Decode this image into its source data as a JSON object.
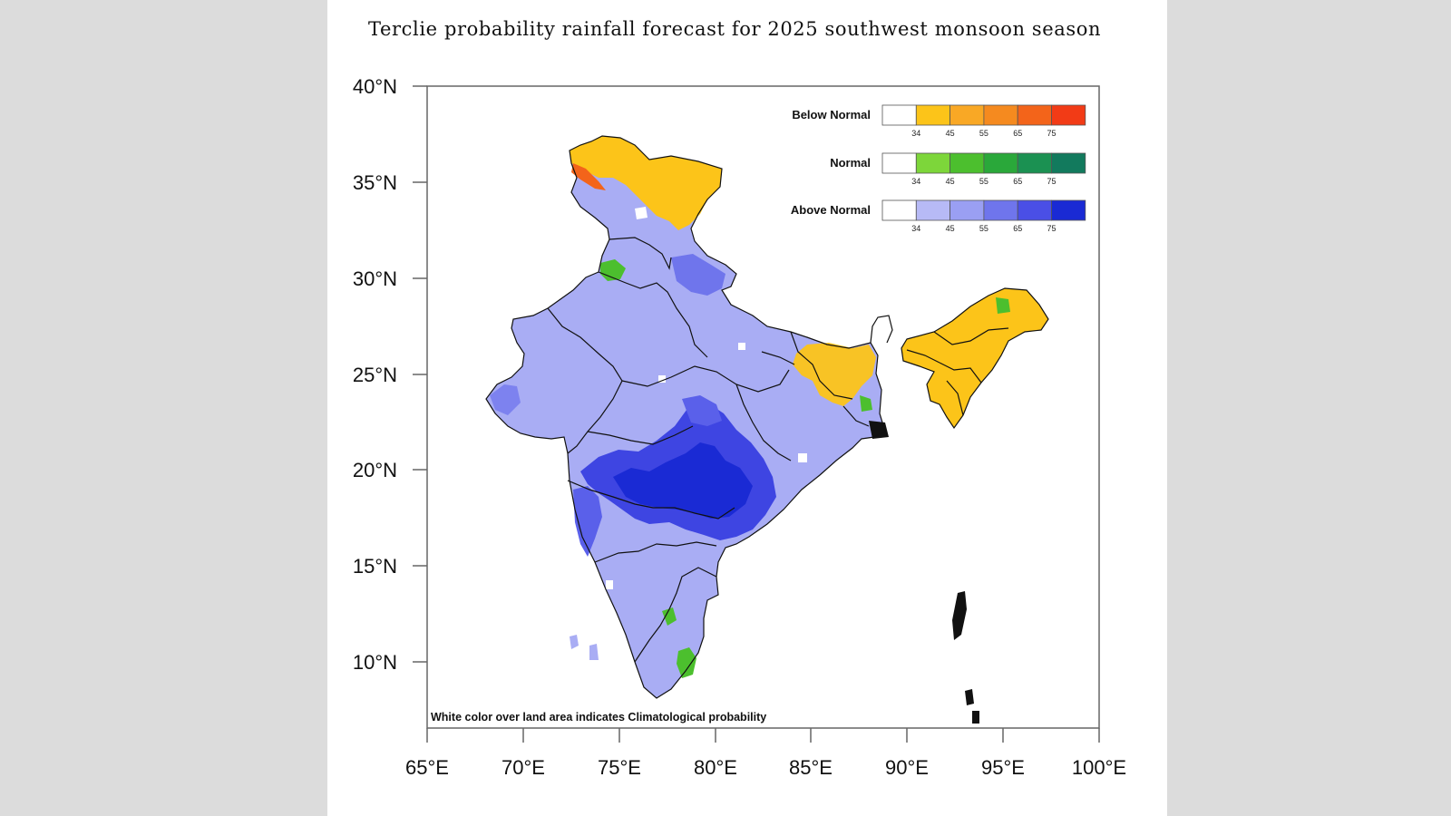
{
  "title": "Terclie probability rainfall forecast for 2025 southwest monsoon  season",
  "axes": {
    "lat_labels": [
      "40°N",
      "35°N",
      "30°N",
      "25°N",
      "20°N",
      "15°N",
      "10°N"
    ],
    "lon_labels": [
      "65°E",
      "70°E",
      "75°E",
      "80°E",
      "85°E",
      "90°E",
      "95°E",
      "100°E"
    ]
  },
  "legend": [
    {
      "label": "Below Normal",
      "colors": [
        "#ffffff",
        "#fcc419",
        "#f9a825",
        "#f58a1f",
        "#f3641a",
        "#f23b16"
      ],
      "ticks": [
        "34",
        "45",
        "55",
        "65",
        "75"
      ]
    },
    {
      "label": "Normal",
      "colors": [
        "#ffffff",
        "#7dd63a",
        "#4cbf2e",
        "#2aa83a",
        "#1b9152",
        "#127a5d"
      ],
      "ticks": [
        "34",
        "45",
        "55",
        "65",
        "75"
      ]
    },
    {
      "label": "Above Normal",
      "colors": [
        "#ffffff",
        "#b7baf6",
        "#9a9ff3",
        "#6f75ec",
        "#4a4fe6",
        "#1a2ad4"
      ],
      "ticks": [
        "34",
        "45",
        "55",
        "65",
        "75"
      ]
    }
  ],
  "note": "White color over land area indicates Climatological probability"
}
